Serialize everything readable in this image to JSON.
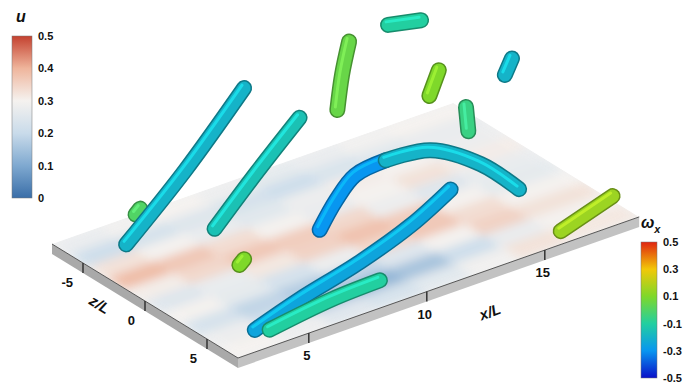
{
  "chart_data": {
    "type": "isosurface",
    "x_label": "x/L",
    "z_label": "z/L",
    "xlim": [
      2,
      19
    ],
    "xticks": [
      5,
      10,
      15
    ],
    "zlim": [
      -7.5,
      7.5
    ],
    "zticks": [
      -5,
      0,
      5
    ],
    "colorbars": [
      {
        "title": "u",
        "range": [
          0,
          0.5
        ],
        "ticks": [
          0,
          0.1,
          0.2,
          0.3,
          0.4,
          0.5
        ]
      },
      {
        "title": "ω",
        "subscript": "x",
        "range": [
          -0.5,
          0.5
        ],
        "ticks": [
          -0.5,
          -0.3,
          -0.1,
          0.1,
          0.3,
          0.5
        ]
      }
    ],
    "u_field": {
      "x_edges": [
        2,
        4,
        6,
        8,
        10,
        12,
        14,
        16,
        19
      ],
      "z_edges": [
        -7.5,
        -6,
        -4.5,
        -3,
        -1.5,
        0,
        1.5,
        3,
        4.5,
        6,
        7.5
      ],
      "values": [
        [
          0.27,
          0.29,
          0.3,
          0.28,
          0.26,
          0.27,
          0.29,
          0.3
        ],
        [
          0.2,
          0.22,
          0.24,
          0.22,
          0.2,
          0.23,
          0.25,
          0.27
        ],
        [
          0.33,
          0.3,
          0.27,
          0.25,
          0.28,
          0.31,
          0.3,
          0.28
        ],
        [
          0.4,
          0.38,
          0.34,
          0.3,
          0.27,
          0.3,
          0.33,
          0.31
        ],
        [
          0.31,
          0.35,
          0.38,
          0.37,
          0.35,
          0.28,
          0.24,
          0.27
        ],
        [
          0.24,
          0.27,
          0.32,
          0.36,
          0.39,
          0.37,
          0.3,
          0.26
        ],
        [
          0.3,
          0.26,
          0.22,
          0.28,
          0.35,
          0.38,
          0.34,
          0.3
        ],
        [
          0.22,
          0.18,
          0.16,
          0.18,
          0.24,
          0.3,
          0.36,
          0.33
        ],
        [
          0.28,
          0.21,
          0.13,
          0.11,
          0.14,
          0.2,
          0.27,
          0.3
        ],
        [
          0.3,
          0.28,
          0.24,
          0.22,
          0.25,
          0.29,
          0.33,
          0.32
        ]
      ]
    },
    "structures": [
      {
        "x": [
          14.4,
          15.8
        ],
        "y": [
          10.2,
          9.7
        ],
        "z": [
          -4,
          -4
        ],
        "omega": -0.1
      },
      {
        "x": [
          11.2,
          11.4,
          11.7
        ],
        "y": [
          7.1,
          9.5,
          11.7
        ],
        "z": [
          -2,
          -2,
          -2
        ],
        "omega": 0.05
      },
      {
        "x": [
          15.1,
          15.5
        ],
        "y": [
          5.8,
          7.4
        ],
        "z": [
          -2,
          -2
        ],
        "omega": 0.1
      },
      {
        "x": [
          18.3,
          18.6
        ],
        "y": [
          5.4,
          6.4
        ],
        "z": [
          -2,
          -2
        ],
        "omega": -0.2
      },
      {
        "x": [
          15.6,
          15.7
        ],
        "y": [
          5.8,
          4.0
        ],
        "z": [
          0,
          0
        ],
        "omega": -0.05
      },
      {
        "x": [
          3.7,
          3.9
        ],
        "y": [
          3.0,
          3.3
        ],
        "z": [
          -4,
          -4
        ],
        "omega": 0.0
      },
      {
        "x": [
          3.3,
          5.8,
          8.3
        ],
        "y": [
          1.1,
          4.9,
          9.3
        ],
        "z": [
          -4,
          -4,
          -4
        ],
        "omega": -0.2
      },
      {
        "x": [
          6.0,
          7.8,
          9.6
        ],
        "y": [
          1.7,
          4.7,
          7.5
        ],
        "z": [
          -2,
          -2,
          -2
        ],
        "omega": -0.15
      },
      {
        "x": [
          6.0,
          6.2
        ],
        "y": [
          0.2,
          0.5
        ],
        "z": [
          0,
          0
        ],
        "omega": 0.1
      },
      {
        "x": [
          9.4,
          10.1,
          10.9,
          12.2
        ],
        "y": [
          0.7,
          2.4,
          3.7,
          4.0
        ],
        "z": [
          0,
          0,
          0,
          0
        ],
        "omega": -0.3
      },
      {
        "x": [
          12.2,
          14.1,
          15.7,
          16.8
        ],
        "y": [
          4.0,
          3.6,
          2.2,
          0.3
        ],
        "z": [
          0,
          0,
          1,
          2
        ],
        "omega": -0.2
      },
      {
        "x": [
          16.2,
          18.4
        ],
        "y": [
          0.1,
          1.3
        ],
        "z": [
          6.5,
          6.5
        ],
        "omega": 0.15
      },
      {
        "x": [
          3.5,
          5.9,
          9.0,
          11.7,
          13.9
        ],
        "y": [
          0.3,
          0.5,
          0.8,
          1.3,
          2.0
        ],
        "z": [
          6,
          5,
          4,
          3,
          2
        ],
        "omega": -0.25
      },
      {
        "x": [
          3.6,
          6.2,
          8.8
        ],
        "y": [
          0.8,
          1.4,
          0.7
        ],
        "z": [
          7,
          7,
          6
        ],
        "omega": -0.1
      }
    ]
  }
}
